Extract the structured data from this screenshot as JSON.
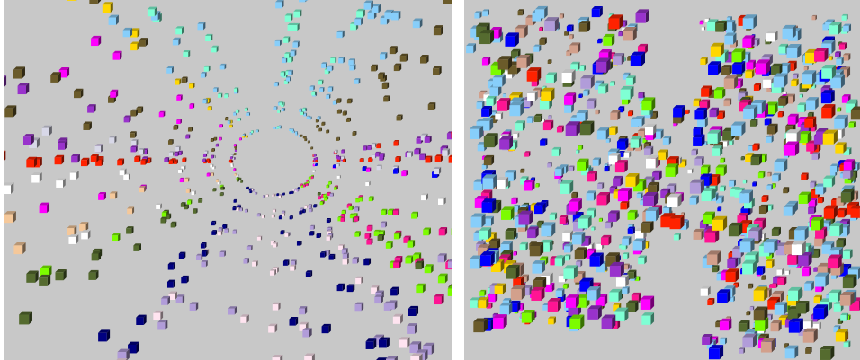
{
  "figure": {
    "background": "#c8c8c8",
    "separator_color": "#ffffff",
    "panels": [
      {
        "id": "left",
        "view": "radial-perspective",
        "description_tag": "3d-cube-field-perspective"
      },
      {
        "id": "right",
        "view": "columnar-perspective",
        "description_tag": "3d-cube-field-columns"
      }
    ],
    "palette": [
      "#7fffd4",
      "#87cefa",
      "#ff00ff",
      "#ffd700",
      "#6b5b2a",
      "#d2a08c",
      "#9932cc",
      "#ff2200",
      "#d8d8e8",
      "#0000ff",
      "#ffffff",
      "#f5c89a",
      "#ff1493",
      "#7cfc00",
      "#b19cd9",
      "#000080",
      "#ffe4f0",
      "#556b2f"
    ]
  }
}
